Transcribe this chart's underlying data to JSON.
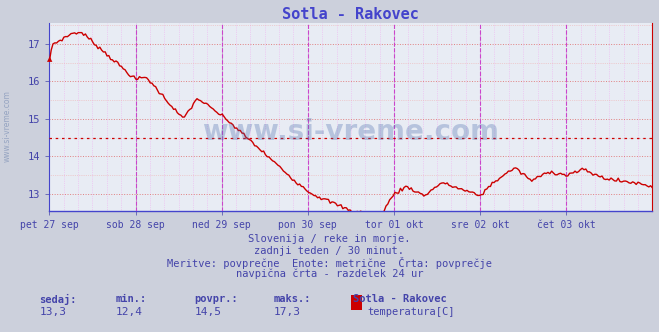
{
  "title": "Sotla - Rakovec",
  "title_color": "#4444cc",
  "bg_color": "#ccd0dc",
  "plot_bg_color": "#e8ecf4",
  "line_color": "#cc0000",
  "line_width": 1.0,
  "yticks": [
    13,
    14,
    15,
    16,
    17
  ],
  "avg_line_y": 14.5,
  "avg_line_color": "#cc0000",
  "grid_minor_color_y": "#f0b0b0",
  "grid_minor_color_x": "#f0b0f0",
  "grid_major_color_y": "#e08080",
  "grid_major_color_x": "#c080c0",
  "vert_line_color": "#cc44cc",
  "vert_line_black": "#888888",
  "xlabel_color": "#4444aa",
  "watermark_text": "www.si-vreme.com",
  "watermark_color": "#4466aa",
  "watermark_alpha": 0.3,
  "subtitle_lines": [
    "Slovenija / reke in morje.",
    "zadnji teden / 30 minut.",
    "Meritve: povprečne  Enote: metrične  Črta: povprečje",
    "navpična črta - razdelek 24 ur"
  ],
  "subtitle_color": "#4444aa",
  "subtitle_fontsize": 7.5,
  "footer_labels": [
    "sedaj:",
    "min.:",
    "povpr.:",
    "maks.:"
  ],
  "footer_values": [
    "13,3",
    "12,4",
    "14,5",
    "17,3"
  ],
  "footer_label_color": "#4444aa",
  "footer_station": "Sotla - Rakovec",
  "footer_series": "temperatura[C]",
  "footer_rect_color": "#cc0000",
  "x_day_labels": [
    "pet 27 sep",
    "sob 28 sep",
    "ned 29 sep",
    "pon 30 sep",
    "tor 01 okt",
    "sre 02 okt",
    "čet 03 okt"
  ],
  "n_points": 336,
  "side_text": "www.si-vreme.com",
  "side_text_color": "#8899bb",
  "ylim_min": 12.55,
  "ylim_max": 17.55
}
